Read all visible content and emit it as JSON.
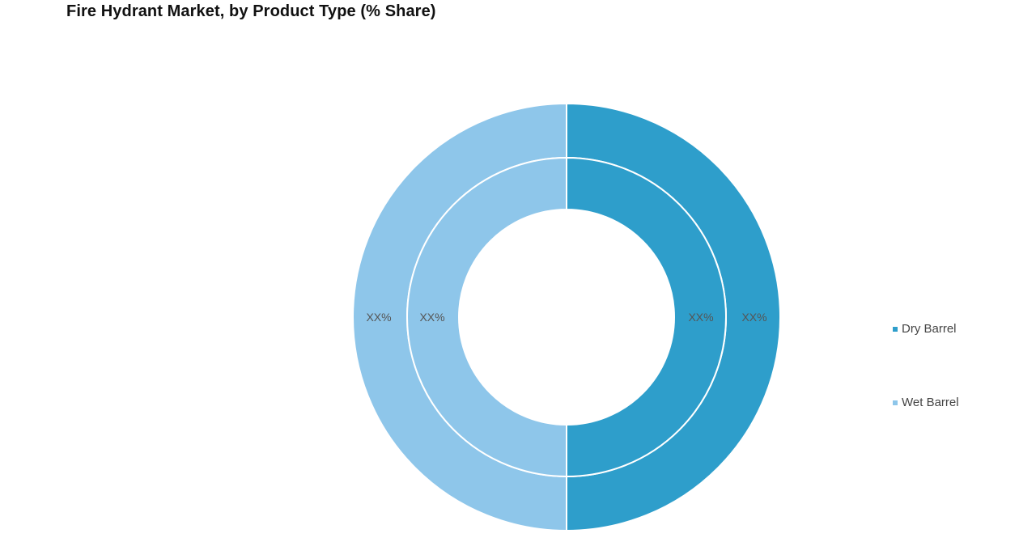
{
  "title": "Fire Hydrant Market, by Product Type (% Share)",
  "colors": {
    "dry_barrel": "#2e9ecb",
    "wet_barrel": "#8ec6ea",
    "separator": "#ffffff",
    "label_text": "#555555"
  },
  "chart_data": {
    "type": "pie",
    "variant": "nested-donut",
    "title": "Fire Hydrant Market, by Product Type (% Share)",
    "legend": [
      "Dry Barrel",
      "Wet Barrel"
    ],
    "legend_position": "right",
    "rings": [
      {
        "ring": "outer",
        "slices": [
          {
            "label": "Dry Barrel",
            "value": 50,
            "display": "XX%"
          },
          {
            "label": "Wet Barrel",
            "value": 50,
            "display": "XX%"
          }
        ]
      },
      {
        "ring": "inner",
        "slices": [
          {
            "label": "Dry Barrel",
            "value": 50,
            "display": "XX%"
          },
          {
            "label": "Wet Barrel",
            "value": 50,
            "display": "XX%"
          }
        ]
      }
    ]
  }
}
